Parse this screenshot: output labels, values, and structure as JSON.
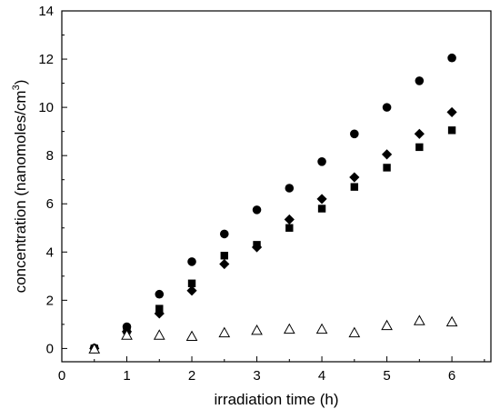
{
  "chart_data": {
    "type": "scatter",
    "title": "",
    "xlabel": "irradiation time (h)",
    "ylabel_main": "concentration (nanomoles/cm",
    "ylabel_sup": "3",
    "ylabel_close": ")",
    "xlim": [
      0,
      6.6
    ],
    "ylim": [
      -0.55,
      14
    ],
    "xticks": [
      0,
      1,
      2,
      3,
      4,
      5,
      6
    ],
    "yticks": [
      0,
      2,
      4,
      6,
      8,
      10,
      12,
      14
    ],
    "x_minor_step": 0.5,
    "y_minor_step": 1,
    "grid": false,
    "legend": "none",
    "series": [
      {
        "marker": "circle",
        "fill": "#000000",
        "x": [
          0.5,
          1,
          1.5,
          2,
          2.5,
          3,
          3.5,
          4,
          4.5,
          5,
          5.5,
          6
        ],
        "y": [
          0.02,
          0.9,
          2.25,
          3.6,
          4.75,
          5.75,
          6.65,
          7.75,
          8.9,
          10.0,
          11.1,
          12.05
        ]
      },
      {
        "marker": "square",
        "fill": "#000000",
        "x": [
          0.5,
          1,
          1.5,
          2,
          2.5,
          3,
          3.5,
          4,
          4.5,
          5,
          5.5,
          6
        ],
        "y": [
          0.0,
          0.75,
          1.65,
          2.7,
          3.85,
          4.3,
          5.0,
          5.8,
          6.7,
          7.5,
          8.35,
          9.05
        ]
      },
      {
        "marker": "diamond",
        "fill": "#000000",
        "x": [
          0.5,
          1,
          1.5,
          2,
          2.5,
          3,
          3.5,
          4,
          4.5,
          5,
          5.5,
          6
        ],
        "y": [
          0.0,
          0.7,
          1.45,
          2.4,
          3.5,
          4.2,
          5.35,
          6.2,
          7.1,
          8.05,
          8.9,
          9.8
        ]
      },
      {
        "marker": "triangle-open",
        "fill": "none",
        "x": [
          0.5,
          1,
          1.5,
          2,
          2.5,
          3,
          3.5,
          4,
          4.5,
          5,
          5.5,
          6
        ],
        "y": [
          -0.02,
          0.55,
          0.55,
          0.5,
          0.65,
          0.75,
          0.8,
          0.8,
          0.65,
          0.95,
          1.15,
          1.1
        ]
      }
    ]
  }
}
